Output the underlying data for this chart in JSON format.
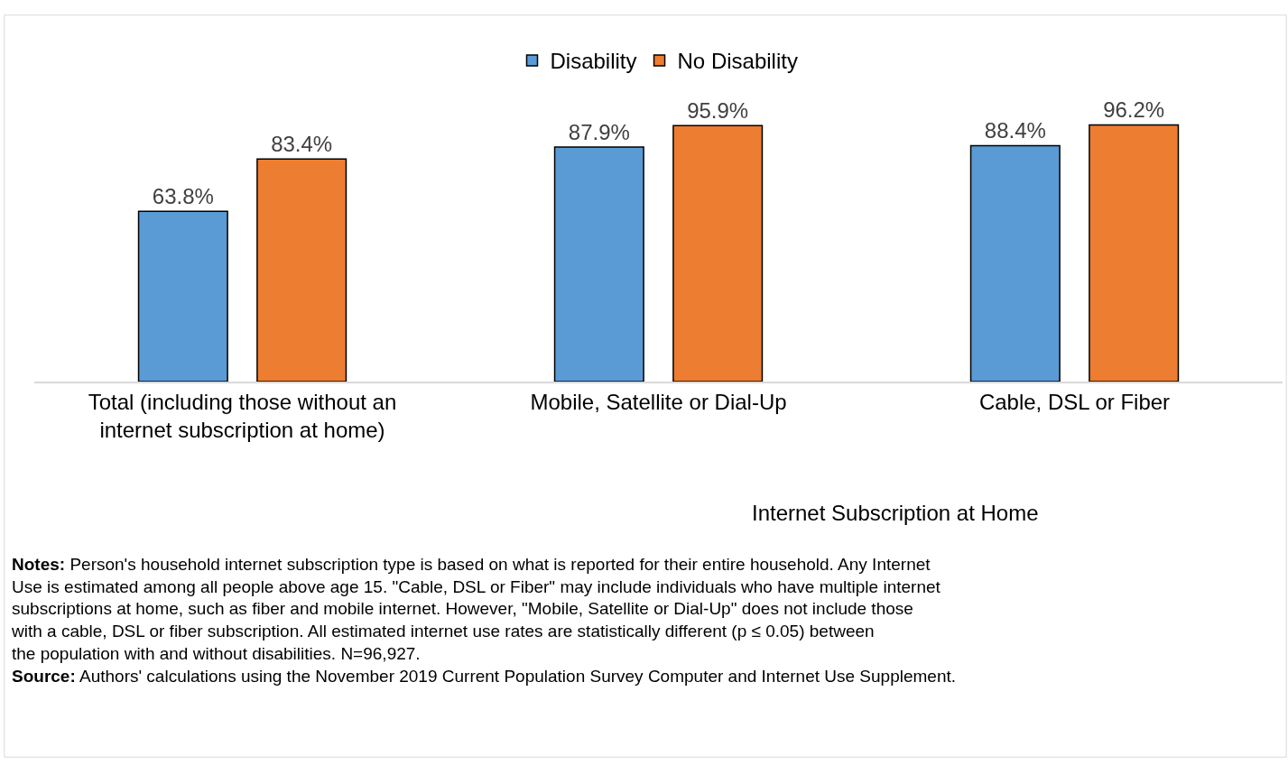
{
  "chart_data": {
    "type": "bar",
    "xlabel": "Internet Subscription at Home",
    "categories": [
      "Total (including those without an internet subscription at home)",
      "Mobile, Satellite or Dial-Up",
      "Cable, DSL or Fiber"
    ],
    "series": [
      {
        "name": "Disability",
        "color": "#5b9bd5",
        "values": [
          63.8,
          87.9,
          88.4
        ],
        "value_labels": [
          "63.8%",
          "87.9%",
          "88.4%"
        ]
      },
      {
        "name": "No Disability",
        "color": "#ed7d31",
        "values": [
          83.4,
          95.9,
          96.2
        ],
        "value_labels": [
          "83.4%",
          "95.9%",
          "96.2%"
        ]
      }
    ],
    "legend": "top",
    "annotations": [
      "Notes: Person's household internet subscription type is based on what is reported for their entire household. Any Internet Use is estimated among all people above age 15. \"Cable, DSL or Fiber\" may include individuals who have multiple internet subscriptions at home, such as fiber and mobile internet. However, \"Mobile, Satellite or Dial-Up\" does not include those with a cable, DSL or fiber subscription. All estimated internet use rates are statistically different (p ≤ 0.05) between the population with and without disabilities. N=96,927.",
      "Source: Authors' calculations using the November 2019 Current Population Survey Computer and Internet Use Supplement."
    ]
  }
}
